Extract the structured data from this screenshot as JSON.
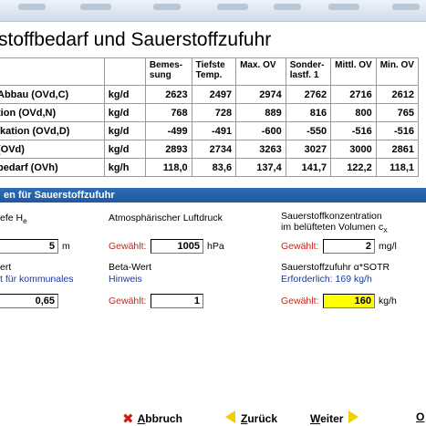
{
  "title": "stoffbedarf und Sauerstoffzufuhr",
  "table": {
    "columns": [
      "",
      "",
      "Bemes- sung",
      "Tiefste Temp.",
      "Max. OV",
      "Sonder- lastf. 1",
      "Mittl. OV",
      "Min. OV"
    ],
    "rows": [
      {
        "label": "Abbau (OVd,C)",
        "unit": "kg/d",
        "values": [
          "2623",
          "2497",
          "2974",
          "2762",
          "2716",
          "2612"
        ]
      },
      {
        "label": "tion (OVd,N)",
        "unit": "kg/d",
        "values": [
          "768",
          "728",
          "889",
          "816",
          "800",
          "765"
        ]
      },
      {
        "label": "ikation (OVd,D)",
        "unit": "kg/d",
        "values": [
          "-499",
          "-491",
          "-600",
          "-550",
          "-516",
          "-516"
        ]
      },
      {
        "label": " (OVd)",
        "unit": "kg/d",
        "values": [
          "2893",
          "2734",
          "3263",
          "3027",
          "3000",
          "2861"
        ]
      },
      {
        "label": "bedarf (OVh)",
        "unit": "kg/h",
        "values": [
          "118,0",
          "83,6",
          "137,4",
          "141,7",
          "122,2",
          "118,1"
        ]
      }
    ]
  },
  "section": {
    "title": "en für Sauerstoffzufuhr"
  },
  "params": {
    "depth_label": "efe H",
    "depth_sub": "e",
    "depth_value": "5",
    "depth_unit": "m",
    "pressure_label": "Atmosphärischer Luftdruck",
    "pressure_chosen": "Gewählt:",
    "pressure_value": "1005",
    "pressure_unit": "hPa",
    "o2conc_label1": "Sauerstoffkonzentration",
    "o2conc_label2": "im belüfteten Volumen c",
    "o2conc_sub": "X",
    "o2conc_chosen": "Gewählt:",
    "o2conc_value": "2",
    "o2conc_unit": "mg/l",
    "alpha_label1": "ert",
    "alpha_label2": "t für kommunales",
    "alpha_value": "0,65",
    "beta_label": "Beta-Wert",
    "beta_hint": "Hinweis",
    "beta_chosen": "Gewählt:",
    "beta_value": "1",
    "sotr_label": "Sauerstoffzufuhr α*SOTR",
    "sotr_required": "Erforderlich: 169 kg/h",
    "sotr_chosen": "Gewählt:",
    "sotr_value": "160",
    "sotr_unit": "kg/h"
  },
  "footer": {
    "cancel_rest": "bbruch",
    "cancel_ul": "A",
    "back_rest": "urück",
    "back_ul": "Z",
    "next_ul": "W",
    "next_rest": "eiter",
    "ok_ul": "O"
  },
  "colors": {
    "section_header": "#2060a8",
    "highlight": "#ffff00",
    "label_red": "#c2261f",
    "label_blue": "#1b3a9c"
  }
}
